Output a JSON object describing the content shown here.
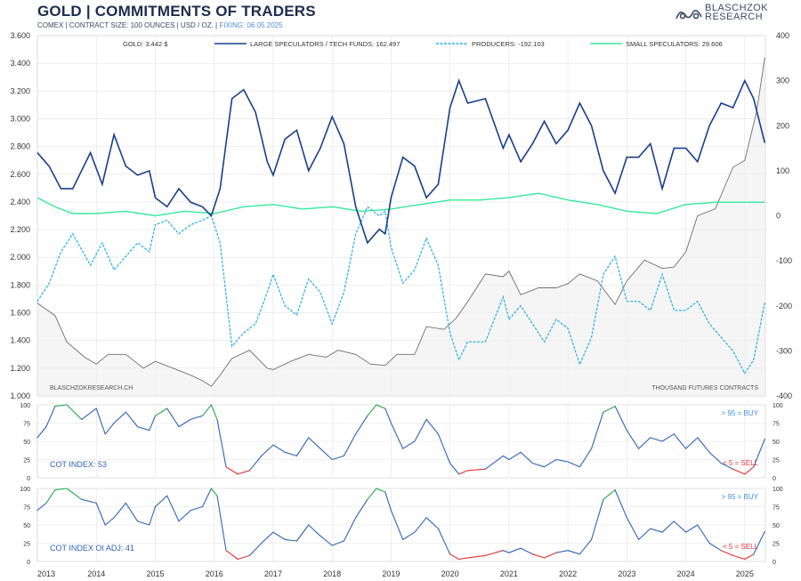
{
  "header": {
    "title": "GOLD | COMMITMENTS OF TRADERS",
    "subtitle_main": "COMEX | CONTRACT SIZE: 100 OUNCES | USD / OZ. | ",
    "subtitle_fixing": "FIXING: 06.05.2025",
    "logo_line1": "BLASCHZOK",
    "logo_line2": "RESEARCH"
  },
  "colors": {
    "gold": "#6e6e6e",
    "large_specs": "#173f8a",
    "producers": "#1fb0e0",
    "small_specs": "#36e89a",
    "buy": "#3f8fe0",
    "sell": "#e8303a",
    "cot_line": "#2e64b8",
    "cot_high": "#25a84a",
    "cot_low": "#e03030",
    "grid": "#e2e2e2"
  },
  "chart_data": [
    {
      "type": "line",
      "panel": "main",
      "legend": [
        "GOLD: 3.442 $",
        "LARGE SPECULATORS / TECH FUNDS: 162.497",
        "PRODUCERS: -192.103",
        "SMALL SPECULATORS: 29.606"
      ],
      "left_axis": {
        "ylim": [
          1000,
          3600
        ],
        "ticks": [
          "1.000",
          "1.200",
          "1.400",
          "1.600",
          "1.800",
          "2.000",
          "2.200",
          "2.400",
          "2.600",
          "2.800",
          "3.000",
          "3.200",
          "3.400",
          "3.600"
        ]
      },
      "right_axis": {
        "ylim": [
          -400,
          400
        ],
        "ticks": [
          "-400",
          "-300",
          "-200",
          "-100",
          "0",
          "100",
          "200",
          "300",
          "400"
        ],
        "label": "THOUSAND FUTURES CONTRACTS"
      },
      "watermark": "BLASCHZOKRESEARCH.CH",
      "x_range": [
        2013.0,
        2025.35
      ],
      "gold": {
        "x": [
          2013.0,
          2013.1,
          2013.3,
          2013.5,
          2013.8,
          2014.0,
          2014.2,
          2014.5,
          2014.8,
          2015.0,
          2015.3,
          2015.6,
          2015.8,
          2015.95,
          2016.1,
          2016.3,
          2016.6,
          2016.9,
          2017.0,
          2017.3,
          2017.6,
          2017.9,
          2018.1,
          2018.4,
          2018.65,
          2018.9,
          2019.1,
          2019.4,
          2019.6,
          2019.9,
          2020.1,
          2020.3,
          2020.6,
          2020.9,
          2021.0,
          2021.2,
          2021.5,
          2021.8,
          2022.0,
          2022.2,
          2022.5,
          2022.8,
          2023.0,
          2023.3,
          2023.6,
          2023.8,
          2024.0,
          2024.2,
          2024.5,
          2024.8,
          2025.0,
          2025.2,
          2025.34
        ],
        "y": [
          1670,
          1640,
          1580,
          1390,
          1280,
          1230,
          1300,
          1300,
          1200,
          1250,
          1200,
          1150,
          1110,
          1070,
          1150,
          1270,
          1330,
          1200,
          1190,
          1250,
          1300,
          1280,
          1330,
          1300,
          1230,
          1220,
          1300,
          1300,
          1500,
          1480,
          1560,
          1680,
          1880,
          1860,
          1900,
          1730,
          1780,
          1780,
          1810,
          1880,
          1830,
          1660,
          1830,
          1980,
          1920,
          1930,
          2040,
          2300,
          2350,
          2650,
          2700,
          3050,
          3442
        ]
      },
      "large_speculators": {
        "x": [
          2013.0,
          2013.2,
          2013.4,
          2013.6,
          2013.9,
          2014.1,
          2014.3,
          2014.5,
          2014.7,
          2014.9,
          2015.0,
          2015.2,
          2015.4,
          2015.6,
          2015.8,
          2015.95,
          2016.1,
          2016.3,
          2016.5,
          2016.7,
          2016.9,
          2017.0,
          2017.2,
          2017.4,
          2017.6,
          2017.8,
          2018.0,
          2018.2,
          2018.4,
          2018.6,
          2018.8,
          2018.9,
          2019.0,
          2019.2,
          2019.4,
          2019.6,
          2019.8,
          2020.0,
          2020.15,
          2020.3,
          2020.6,
          2020.9,
          2021.0,
          2021.2,
          2021.4,
          2021.6,
          2021.8,
          2022.0,
          2022.2,
          2022.4,
          2022.6,
          2022.8,
          2023.0,
          2023.2,
          2023.4,
          2023.6,
          2023.8,
          2024.0,
          2024.2,
          2024.4,
          2024.6,
          2024.8,
          2025.0,
          2025.15,
          2025.34
        ],
        "y": [
          140,
          110,
          60,
          60,
          140,
          70,
          180,
          110,
          90,
          100,
          40,
          20,
          60,
          30,
          20,
          0,
          60,
          260,
          280,
          230,
          120,
          90,
          170,
          190,
          100,
          150,
          220,
          160,
          20,
          -60,
          -30,
          -40,
          40,
          130,
          110,
          40,
          70,
          240,
          300,
          250,
          260,
          150,
          180,
          120,
          160,
          210,
          160,
          190,
          250,
          200,
          100,
          50,
          130,
          130,
          160,
          60,
          150,
          150,
          120,
          200,
          250,
          240,
          300,
          260,
          162
        ]
      },
      "producers": {
        "x": [
          2013.0,
          2013.2,
          2013.4,
          2013.6,
          2013.9,
          2014.1,
          2014.3,
          2014.5,
          2014.7,
          2014.9,
          2015.0,
          2015.2,
          2015.4,
          2015.6,
          2015.8,
          2015.95,
          2016.1,
          2016.3,
          2016.5,
          2016.7,
          2016.9,
          2017.0,
          2017.2,
          2017.4,
          2017.6,
          2017.8,
          2018.0,
          2018.2,
          2018.4,
          2018.6,
          2018.8,
          2018.9,
          2019.0,
          2019.2,
          2019.4,
          2019.6,
          2019.8,
          2020.0,
          2020.15,
          2020.3,
          2020.6,
          2020.9,
          2021.0,
          2021.2,
          2021.4,
          2021.6,
          2021.8,
          2022.0,
          2022.2,
          2022.4,
          2022.6,
          2022.8,
          2023.0,
          2023.2,
          2023.4,
          2023.6,
          2023.8,
          2024.0,
          2024.2,
          2024.4,
          2024.6,
          2024.8,
          2025.0,
          2025.15,
          2025.34
        ],
        "y": [
          -190,
          -150,
          -80,
          -40,
          -110,
          -60,
          -120,
          -90,
          -60,
          -80,
          -20,
          -10,
          -40,
          -20,
          -10,
          0,
          -60,
          -290,
          -260,
          -240,
          -170,
          -130,
          -200,
          -220,
          -140,
          -170,
          -240,
          -170,
          -40,
          20,
          0,
          10,
          -70,
          -150,
          -120,
          -50,
          -110,
          -260,
          -320,
          -280,
          -280,
          -180,
          -230,
          -200,
          -240,
          -280,
          -230,
          -250,
          -330,
          -270,
          -130,
          -90,
          -190,
          -190,
          -210,
          -130,
          -210,
          -210,
          -190,
          -240,
          -270,
          -300,
          -350,
          -320,
          -192
        ]
      },
      "small_speculators": {
        "x": [
          2013.0,
          2013.3,
          2013.6,
          2014.0,
          2014.5,
          2015.0,
          2015.5,
          2016.0,
          2016.5,
          2017.0,
          2017.5,
          2018.0,
          2018.5,
          2019.0,
          2019.5,
          2020.0,
          2020.5,
          2021.0,
          2021.5,
          2022.0,
          2022.5,
          2023.0,
          2023.5,
          2024.0,
          2024.5,
          2025.0,
          2025.34
        ],
        "y": [
          40,
          20,
          5,
          5,
          10,
          0,
          10,
          5,
          20,
          25,
          15,
          20,
          10,
          15,
          25,
          35,
          35,
          40,
          50,
          35,
          25,
          10,
          5,
          25,
          30,
          30,
          30
        ]
      }
    },
    {
      "type": "line",
      "panel": "cot_index",
      "label": "COT INDEX: 53",
      "buy_label": "> 95 = BUY",
      "sell_label": "< 5 = SELL",
      "ylim": [
        0,
        100
      ],
      "ticks": [
        "0",
        "25",
        "50",
        "75",
        "100"
      ],
      "x": [
        2013.0,
        2013.15,
        2013.3,
        2013.5,
        2013.75,
        2014.0,
        2014.15,
        2014.3,
        2014.5,
        2014.7,
        2014.9,
        2015.0,
        2015.2,
        2015.4,
        2015.6,
        2015.8,
        2015.95,
        2016.05,
        2016.2,
        2016.4,
        2016.6,
        2016.8,
        2017.0,
        2017.2,
        2017.4,
        2017.6,
        2017.8,
        2018.0,
        2018.2,
        2018.4,
        2018.6,
        2018.75,
        2018.9,
        2019.0,
        2019.2,
        2019.4,
        2019.6,
        2019.8,
        2020.0,
        2020.15,
        2020.3,
        2020.6,
        2020.9,
        2021.0,
        2021.2,
        2021.4,
        2021.6,
        2021.8,
        2022.0,
        2022.2,
        2022.4,
        2022.6,
        2022.8,
        2023.0,
        2023.2,
        2023.4,
        2023.6,
        2023.8,
        2024.0,
        2024.2,
        2024.4,
        2024.6,
        2024.8,
        2025.0,
        2025.15,
        2025.34
      ],
      "values": [
        55,
        70,
        98,
        100,
        80,
        95,
        60,
        75,
        90,
        70,
        65,
        85,
        95,
        70,
        80,
        85,
        100,
        80,
        15,
        5,
        10,
        30,
        45,
        35,
        30,
        55,
        40,
        25,
        30,
        60,
        85,
        100,
        95,
        75,
        40,
        50,
        80,
        60,
        20,
        5,
        10,
        12,
        30,
        25,
        35,
        20,
        15,
        25,
        22,
        15,
        40,
        90,
        98,
        65,
        40,
        55,
        50,
        60,
        40,
        55,
        35,
        20,
        12,
        5,
        15,
        53
      ]
    },
    {
      "type": "line",
      "panel": "cot_index_oi_adj",
      "label": "COT INDEX OI ADJ: 41",
      "buy_label": "> 95 = BUY",
      "sell_label": "< 5 = SELL",
      "ylim": [
        0,
        100
      ],
      "ticks": [
        "0",
        "25",
        "50",
        "75",
        "100"
      ],
      "x": [
        2013.0,
        2013.15,
        2013.3,
        2013.5,
        2013.75,
        2014.0,
        2014.15,
        2014.3,
        2014.5,
        2014.7,
        2014.9,
        2015.0,
        2015.2,
        2015.4,
        2015.6,
        2015.8,
        2015.95,
        2016.05,
        2016.2,
        2016.4,
        2016.6,
        2016.8,
        2017.0,
        2017.2,
        2017.4,
        2017.6,
        2017.8,
        2018.0,
        2018.2,
        2018.4,
        2018.6,
        2018.75,
        2018.9,
        2019.0,
        2019.2,
        2019.4,
        2019.6,
        2019.8,
        2020.0,
        2020.15,
        2020.3,
        2020.6,
        2020.9,
        2021.0,
        2021.2,
        2021.4,
        2021.6,
        2021.8,
        2022.0,
        2022.2,
        2022.4,
        2022.6,
        2022.8,
        2023.0,
        2023.2,
        2023.4,
        2023.6,
        2023.8,
        2024.0,
        2024.2,
        2024.4,
        2024.6,
        2024.8,
        2025.0,
        2025.15,
        2025.34
      ],
      "values": [
        70,
        80,
        98,
        100,
        85,
        80,
        50,
        60,
        80,
        55,
        50,
        75,
        90,
        55,
        70,
        75,
        100,
        90,
        15,
        3,
        8,
        25,
        40,
        30,
        28,
        50,
        35,
        22,
        28,
        60,
        85,
        100,
        95,
        70,
        30,
        40,
        60,
        45,
        10,
        3,
        5,
        8,
        15,
        12,
        18,
        10,
        5,
        12,
        15,
        10,
        30,
        85,
        98,
        60,
        30,
        45,
        40,
        55,
        40,
        50,
        25,
        15,
        8,
        3,
        10,
        41
      ]
    }
  ],
  "x_axis": {
    "labels": [
      "2013",
      "2014",
      "2015",
      "2016",
      "2017",
      "2018",
      "2019",
      "2020",
      "2021",
      "2022",
      "2023",
      "2024",
      "2025"
    ]
  }
}
